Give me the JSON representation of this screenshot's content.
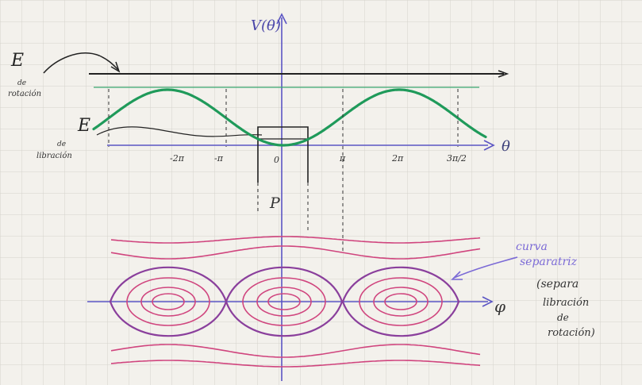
{
  "potential": {
    "y_axis_label": "V(θ)",
    "x_axis_label": "θ",
    "ticks": [
      "-2π",
      "-π",
      "0",
      "π",
      "2π",
      "3π/2"
    ],
    "energy_rotation_label": "E",
    "energy_rotation_sub": [
      "de",
      "rotación"
    ],
    "energy_libration_label": "E",
    "energy_libration_sub": [
      "de",
      "libración"
    ],
    "colors": {
      "curve": "#1f9a5a",
      "axis": "#5b55c4",
      "ink": "#222222"
    }
  },
  "phase": {
    "y_axis_label": "P",
    "x_axis_label": "φ",
    "separatrix_label": [
      "curva",
      "separatriz"
    ],
    "separatrix_note": [
      "(separa",
      "libración",
      "de",
      "rotación)"
    ],
    "colors": {
      "orbit": "#d0457e",
      "separatrix": "#8a3f9c",
      "axis": "#5b55c4",
      "label": "#7b6ad6"
    }
  }
}
